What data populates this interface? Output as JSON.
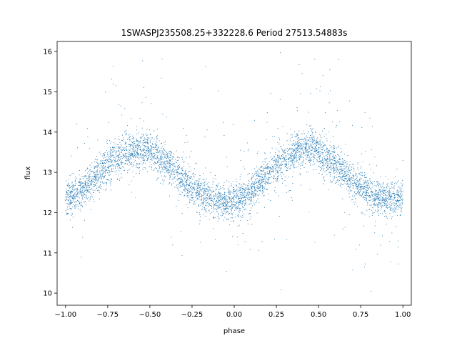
{
  "chart_data": {
    "type": "scatter",
    "title": "1SWASPJ235508.25+332228.6 Period 27513.54883s",
    "xlabel": "phase",
    "ylabel": "flux",
    "xlim": [
      -1.05,
      1.05
    ],
    "ylim": [
      9.7,
      16.25
    ],
    "xticks": [
      -1.0,
      -0.75,
      -0.5,
      -0.25,
      0.0,
      0.25,
      0.5,
      0.75,
      1.0
    ],
    "xtick_labels": [
      "−1.00",
      "−0.75",
      "−0.50",
      "−0.25",
      "0.00",
      "0.25",
      "0.50",
      "0.75",
      "1.00"
    ],
    "yticks": [
      10,
      11,
      12,
      13,
      14,
      15,
      16
    ],
    "ytick_labels": [
      "10",
      "11",
      "12",
      "13",
      "14",
      "15",
      "16"
    ],
    "grid": false,
    "point_color": "#1f77b4",
    "series": [
      {
        "trend": {
          "x": [
            -1.0,
            -0.95,
            -0.9,
            -0.85,
            -0.8,
            -0.75,
            -0.7,
            -0.65,
            -0.6,
            -0.55,
            -0.5,
            -0.45,
            -0.4,
            -0.35,
            -0.3,
            -0.25,
            -0.2,
            -0.15,
            -0.1,
            -0.05,
            0.0,
            0.05,
            0.1,
            0.15,
            0.2,
            0.25,
            0.3,
            0.35,
            0.4,
            0.45,
            0.5,
            0.55,
            0.6,
            0.65,
            0.7,
            0.75,
            0.8,
            0.85,
            0.9,
            0.95,
            1.0
          ],
          "y": [
            12.35,
            12.45,
            12.6,
            12.78,
            12.98,
            13.18,
            13.35,
            13.48,
            13.56,
            13.58,
            13.52,
            13.38,
            13.2,
            13.0,
            12.8,
            12.62,
            12.48,
            12.38,
            12.3,
            12.26,
            12.28,
            12.38,
            12.55,
            12.75,
            12.95,
            13.15,
            13.32,
            13.46,
            13.55,
            13.58,
            13.52,
            13.38,
            13.2,
            13.0,
            12.8,
            12.62,
            12.5,
            12.42,
            12.36,
            12.32,
            12.3
          ]
        },
        "scatter_spread": 0.22,
        "outlier_fraction": 0.06
      }
    ]
  }
}
